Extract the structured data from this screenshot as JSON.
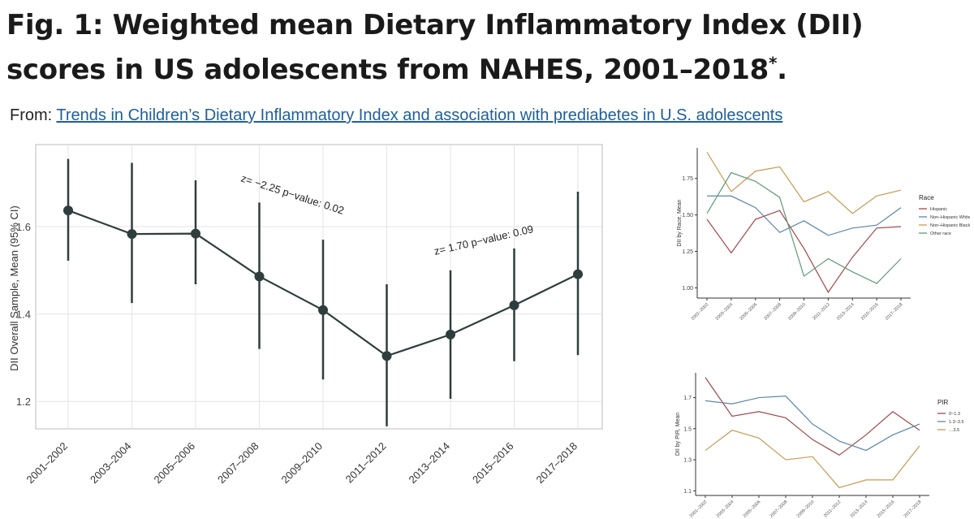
{
  "header": {
    "title": "Fig. 1: Weighted mean Dietary Inflammatory Index (DII) scores in US adolescents from NAHES, 2001–2018",
    "title_asterisk": "*",
    "title_period": ".",
    "from_label": "From:",
    "source_link": "Trends in Children’s Dietary Inflammatory Index and association with prediabetes in U.S. adolescents"
  },
  "colors": {
    "main_series": "#2f3e3c",
    "hispanic": "#a1464a",
    "non_hispanic_white": "#5b86a8",
    "non_hispanic_black": "#c79a52",
    "other_race": "#5e9a76"
  },
  "chart_data": [
    {
      "type": "line",
      "title": "",
      "xlabel": "",
      "ylabel": "DII Overall Sample, Mean (95% CI)",
      "ylim": [
        1.12,
        1.77
      ],
      "yticks": [
        1.2,
        1.4,
        1.6
      ],
      "grid": true,
      "categories": [
        "2001–2002",
        "2003–2004",
        "2005–2006",
        "2007–2008",
        "2009–2010",
        "2011–2012",
        "2013–2014",
        "2015–2016",
        "2017–2018"
      ],
      "series": [
        {
          "values": [
            1.637,
            1.583,
            1.584,
            1.486,
            1.409,
            1.304,
            1.353,
            1.42,
            1.491
          ],
          "lower": [
            1.522,
            1.425,
            1.468,
            1.32,
            1.25,
            1.143,
            1.206,
            1.292,
            1.306
          ],
          "upper": [
            1.755,
            1.746,
            1.706,
            1.655,
            1.57,
            1.468,
            1.5,
            1.55,
            1.68
          ]
        }
      ],
      "annotations": [
        {
          "text": "z= −2.25   p−value: 0.02"
        },
        {
          "text": "z= 1.70   p−value: 0.09"
        }
      ]
    },
    {
      "type": "line",
      "title": "",
      "xlabel": "",
      "ylabel": "DII by Race, Mean",
      "ylim": [
        0.93,
        1.96
      ],
      "yticks": [
        1.0,
        1.25,
        1.5,
        1.75
      ],
      "ytick_labels": [
        "1.00",
        "1.25",
        "1.50",
        "1.75"
      ],
      "grid": false,
      "legend_title": "Race",
      "legend_position": "right",
      "categories": [
        "2001–2002",
        "2003–2004",
        "2005–2006",
        "2007–2008",
        "2009–2010",
        "2011–2012",
        "2013–2014",
        "2015–2016",
        "2017–2018"
      ],
      "series": [
        {
          "name": "Hispanic",
          "values": [
            1.47,
            1.24,
            1.47,
            1.53,
            1.27,
            0.97,
            1.21,
            1.41,
            1.42
          ]
        },
        {
          "name": "Non–Hispanic White",
          "values": [
            1.63,
            1.63,
            1.55,
            1.38,
            1.46,
            1.36,
            1.41,
            1.43,
            1.55
          ]
        },
        {
          "name": "Non–Hispanic Black",
          "values": [
            1.93,
            1.66,
            1.8,
            1.83,
            1.59,
            1.66,
            1.51,
            1.63,
            1.67
          ]
        },
        {
          "name": "Other race",
          "values": [
            1.51,
            1.79,
            1.73,
            1.62,
            1.08,
            1.2,
            1.11,
            1.03,
            1.2
          ]
        }
      ]
    },
    {
      "type": "line",
      "title": "",
      "xlabel": "",
      "ylabel": "DII by PIR, Mean",
      "ylim": [
        1.07,
        1.86
      ],
      "yticks": [
        1.1,
        1.3,
        1.5,
        1.7
      ],
      "grid": false,
      "legend_title": "PIR",
      "legend_position": "right",
      "categories": [
        "2001–2002",
        "2003–2004",
        "2005–2006",
        "2007–2008",
        "2009–2010",
        "2011–2012",
        "2013–2014",
        "2015–2016",
        "2017–2018"
      ],
      "series": [
        {
          "name": "0~1.3",
          "values": [
            1.83,
            1.58,
            1.61,
            1.57,
            1.43,
            1.33,
            1.46,
            1.61,
            1.49
          ]
        },
        {
          "name": "1.3~3.5",
          "values": [
            1.68,
            1.66,
            1.7,
            1.71,
            1.53,
            1.42,
            1.36,
            1.46,
            1.53
          ]
        },
        {
          "name": "…3.5",
          "values": [
            1.36,
            1.49,
            1.44,
            1.3,
            1.32,
            1.12,
            1.17,
            1.17,
            1.39
          ]
        }
      ]
    }
  ]
}
